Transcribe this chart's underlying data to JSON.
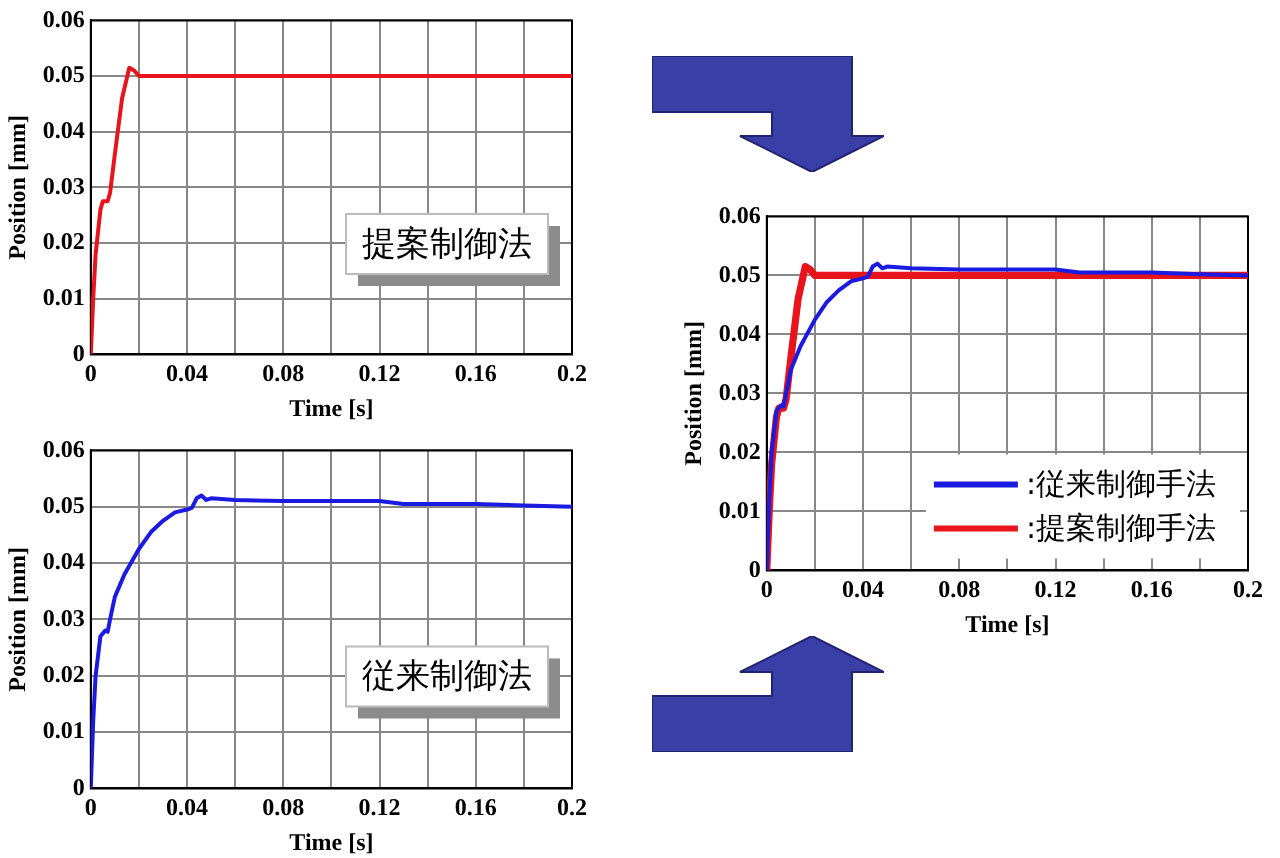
{
  "chart_data": [
    {
      "type": "line",
      "xlabel": "Time [s]",
      "ylabel": "Position [mm]",
      "xlim": [
        0,
        0.2
      ],
      "ylim": [
        0,
        0.06
      ],
      "xticks": [
        0,
        {
          "value": 0.02,
          "label": null
        },
        0.04,
        {
          "value": 0.06,
          "label": null
        },
        0.08,
        {
          "value": 0.1,
          "label": null
        },
        0.12,
        {
          "value": 0.14,
          "label": null
        },
        0.16,
        {
          "value": 0.18,
          "label": null
        },
        0.2
      ],
      "yticks": [
        0,
        0.01,
        0.02,
        0.03,
        0.04,
        0.05,
        0.06
      ],
      "grid": true,
      "legend": false,
      "annotations": [
        "提案制御法"
      ],
      "series": [
        {
          "color": "#e8141c",
          "x": [
            0,
            0.001,
            0.002,
            0.004,
            0.005,
            0.007,
            0.008,
            0.01,
            0.013,
            0.016,
            0.018,
            0.019,
            0.02,
            0.2
          ],
          "values": [
            0,
            0.01,
            0.018,
            0.026,
            0.0275,
            0.0275,
            0.029,
            0.036,
            0.046,
            0.0515,
            0.051,
            0.0505,
            0.05,
            0.05
          ]
        }
      ]
    },
    {
      "type": "line",
      "xlabel": "Time [s]",
      "ylabel": "Position [mm]",
      "xlim": [
        0,
        0.2
      ],
      "ylim": [
        0,
        0.06
      ],
      "xticks": [
        0,
        {
          "value": 0.02,
          "label": null
        },
        0.04,
        {
          "value": 0.06,
          "label": null
        },
        0.08,
        {
          "value": 0.1,
          "label": null
        },
        0.12,
        {
          "value": 0.14,
          "label": null
        },
        0.16,
        {
          "value": 0.18,
          "label": null
        },
        0.2
      ],
      "yticks": [
        0,
        0.01,
        0.02,
        0.03,
        0.04,
        0.05,
        0.06
      ],
      "grid": true,
      "legend": false,
      "annotations": [
        "従来制御法"
      ],
      "series": [
        {
          "color": "#1a1ae0",
          "x": [
            0,
            0.001,
            0.002,
            0.004,
            0.006,
            0.007,
            0.008,
            0.01,
            0.014,
            0.02,
            0.025,
            0.03,
            0.035,
            0.04,
            0.042,
            0.044,
            0.046,
            0.048,
            0.05,
            0.06,
            0.08,
            0.12,
            0.13,
            0.16,
            0.18,
            0.2
          ],
          "values": [
            0,
            0.012,
            0.02,
            0.027,
            0.028,
            0.0278,
            0.03,
            0.034,
            0.038,
            0.0425,
            0.0455,
            0.0475,
            0.049,
            0.0495,
            0.0498,
            0.0515,
            0.052,
            0.0512,
            0.0515,
            0.0512,
            0.051,
            0.051,
            0.0505,
            0.0505,
            0.0502,
            0.05
          ]
        }
      ]
    },
    {
      "type": "line",
      "xlabel": "Time [s]",
      "ylabel": "Position [mm]",
      "xlim": [
        0,
        0.2
      ],
      "ylim": [
        0,
        0.06
      ],
      "xticks": [
        0,
        {
          "value": 0.02,
          "label": null
        },
        0.04,
        {
          "value": 0.06,
          "label": null
        },
        0.08,
        {
          "value": 0.1,
          "label": null
        },
        0.12,
        {
          "value": 0.14,
          "label": null
        },
        0.16,
        {
          "value": 0.18,
          "label": null
        },
        0.2
      ],
      "yticks": [
        0,
        0.01,
        0.02,
        0.03,
        0.04,
        0.05,
        0.06
      ],
      "grid": true,
      "legend": "bottom right",
      "series": [
        {
          "name": ":従来制御手法",
          "color": "#1a1ae0",
          "x": [
            0,
            0.001,
            0.002,
            0.004,
            0.006,
            0.007,
            0.008,
            0.01,
            0.014,
            0.02,
            0.025,
            0.03,
            0.035,
            0.04,
            0.042,
            0.044,
            0.046,
            0.048,
            0.05,
            0.06,
            0.08,
            0.12,
            0.13,
            0.16,
            0.18,
            0.2
          ],
          "values": [
            0,
            0.012,
            0.02,
            0.027,
            0.028,
            0.0278,
            0.03,
            0.034,
            0.038,
            0.0425,
            0.0455,
            0.0475,
            0.049,
            0.0495,
            0.0498,
            0.0515,
            0.052,
            0.0512,
            0.0515,
            0.0512,
            0.051,
            0.051,
            0.0505,
            0.0505,
            0.0502,
            0.05
          ]
        },
        {
          "name": ":提案制御手法",
          "color": "#e8141c",
          "x": [
            0,
            0.001,
            0.002,
            0.004,
            0.005,
            0.007,
            0.008,
            0.01,
            0.013,
            0.016,
            0.018,
            0.019,
            0.02,
            0.2
          ],
          "values": [
            0,
            0.01,
            0.018,
            0.026,
            0.0275,
            0.0275,
            0.029,
            0.036,
            0.046,
            0.0515,
            0.051,
            0.0505,
            0.05,
            0.05
          ]
        }
      ]
    }
  ]
}
